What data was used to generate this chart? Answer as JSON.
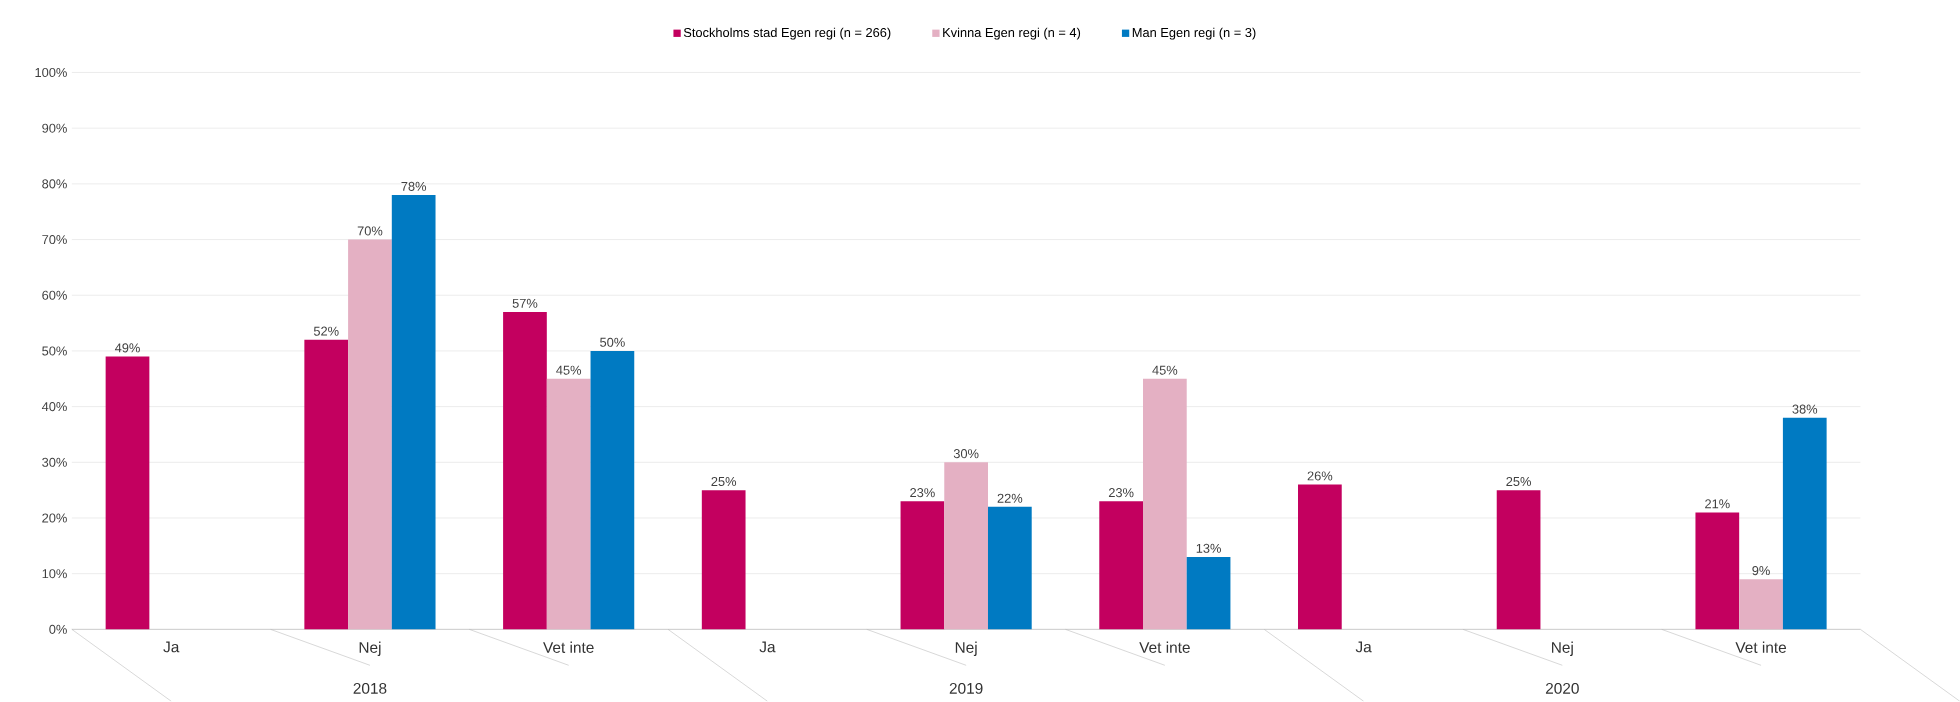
{
  "chart_data": {
    "type": "bar",
    "categories": [
      "Ja",
      "Nej",
      "Vet inte",
      "Ja",
      "Nej",
      "Vet inte",
      "Ja",
      "Nej",
      "Vet inte"
    ],
    "annotations": [
      "2018",
      "2019",
      "2020"
    ],
    "series": [
      {
        "name": "Stockholms stad Egen regi (n = 266)",
        "color": "#c3005f",
        "values": [
          49,
          52,
          57,
          25,
          23,
          23,
          26,
          25,
          21
        ],
        "value_labels": [
          "49%",
          "52%",
          "57%",
          "25%",
          "23%",
          "23%",
          "26%",
          "25%",
          "21%"
        ]
      },
      {
        "name": "Kvinna Egen regi (n = 4)",
        "color": "#e4b0c3",
        "values": [
          null,
          70,
          45,
          null,
          30,
          45,
          null,
          null,
          9
        ],
        "value_labels": [
          null,
          "70%",
          "45%",
          null,
          "30%",
          "45%",
          null,
          null,
          "9%"
        ]
      },
      {
        "name": "Man Egen regi (n = 3)",
        "color": "#007ac2",
        "values": [
          null,
          78,
          50,
          null,
          22,
          13,
          null,
          null,
          38
        ],
        "value_labels": [
          null,
          "78%",
          "50%",
          null,
          "22%",
          "13%",
          null,
          null,
          "38%"
        ]
      }
    ],
    "ylim": [
      0,
      100
    ],
    "yticks": [
      {
        "value": 0,
        "label": "0%"
      },
      {
        "value": 10,
        "label": "10%"
      },
      {
        "value": 20,
        "label": "20%"
      },
      {
        "value": 30,
        "label": "30%"
      },
      {
        "value": 40,
        "label": "40%"
      },
      {
        "value": 50,
        "label": "50%"
      },
      {
        "value": 60,
        "label": "60%"
      },
      {
        "value": 70,
        "label": "70%"
      },
      {
        "value": 80,
        "label": "80%"
      },
      {
        "value": 90,
        "label": "90%"
      },
      {
        "value": 100,
        "label": "100%"
      }
    ],
    "grid": "y",
    "legend": "top"
  }
}
